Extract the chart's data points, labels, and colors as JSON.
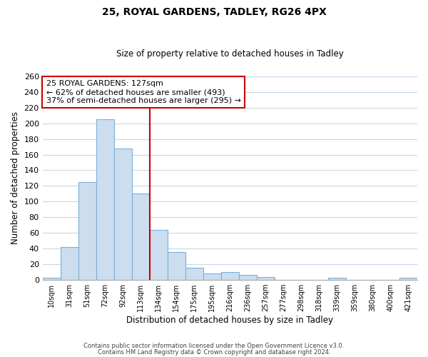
{
  "title": "25, ROYAL GARDENS, TADLEY, RG26 4PX",
  "subtitle": "Size of property relative to detached houses in Tadley",
  "xlabel": "Distribution of detached houses by size in Tadley",
  "ylabel": "Number of detached properties",
  "bar_labels": [
    "10sqm",
    "31sqm",
    "51sqm",
    "72sqm",
    "92sqm",
    "113sqm",
    "134sqm",
    "154sqm",
    "175sqm",
    "195sqm",
    "216sqm",
    "236sqm",
    "257sqm",
    "277sqm",
    "298sqm",
    "318sqm",
    "339sqm",
    "359sqm",
    "380sqm",
    "400sqm",
    "421sqm"
  ],
  "bar_heights": [
    3,
    42,
    125,
    205,
    168,
    110,
    64,
    36,
    16,
    8,
    10,
    6,
    4,
    0,
    0,
    0,
    3,
    0,
    0,
    0,
    3
  ],
  "bar_color": "#ccddf0",
  "bar_edge_color": "#7ab0d8",
  "vline_color": "#cc0000",
  "annotation_title": "25 ROYAL GARDENS: 127sqm",
  "annotation_line1": "← 62% of detached houses are smaller (493)",
  "annotation_line2": "37% of semi-detached houses are larger (295) →",
  "annotation_box_color": "#ffffff",
  "annotation_box_edge": "#cc0000",
  "ylim": [
    0,
    260
  ],
  "yticks": [
    0,
    20,
    40,
    60,
    80,
    100,
    120,
    140,
    160,
    180,
    200,
    220,
    240,
    260
  ],
  "footer1": "Contains HM Land Registry data © Crown copyright and database right 2024.",
  "footer2": "Contains public sector information licensed under the Open Government Licence v3.0.",
  "background_color": "#ffffff",
  "grid_color": "#c8d8e8"
}
